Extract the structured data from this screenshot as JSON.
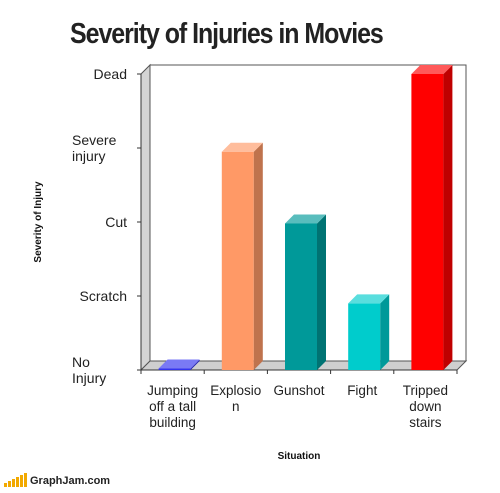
{
  "footer": {
    "site": "GraphJam.com",
    "logo_color": "#f2a900"
  },
  "chart_data": {
    "type": "bar",
    "title": "Severity of Injuries in Movies",
    "xlabel": "Situation",
    "ylabel": "Severity of Injury",
    "y_ticks": [
      "No Injury",
      "Scratch",
      "Cut",
      "Severe injury",
      "Dead"
    ],
    "ylim": [
      0,
      4
    ],
    "grid": false,
    "categories": [
      "Jumping off a tall building",
      "Explosion",
      "Gunshot",
      "Fight",
      "Tripped down stairs"
    ],
    "category_labels_displayed": [
      [
        "Jumping",
        "off a tall",
        "building"
      ],
      [
        "Explosio",
        "n"
      ],
      [
        "Gunshot"
      ],
      [
        "Fight"
      ],
      [
        "Tripped",
        "down",
        "stairs"
      ]
    ],
    "values": [
      0.02,
      2.95,
      1.98,
      0.9,
      4.0
    ],
    "colors": [
      "#3333ee",
      "#ff9966",
      "#009999",
      "#00cccc",
      "#ff0000"
    ]
  }
}
